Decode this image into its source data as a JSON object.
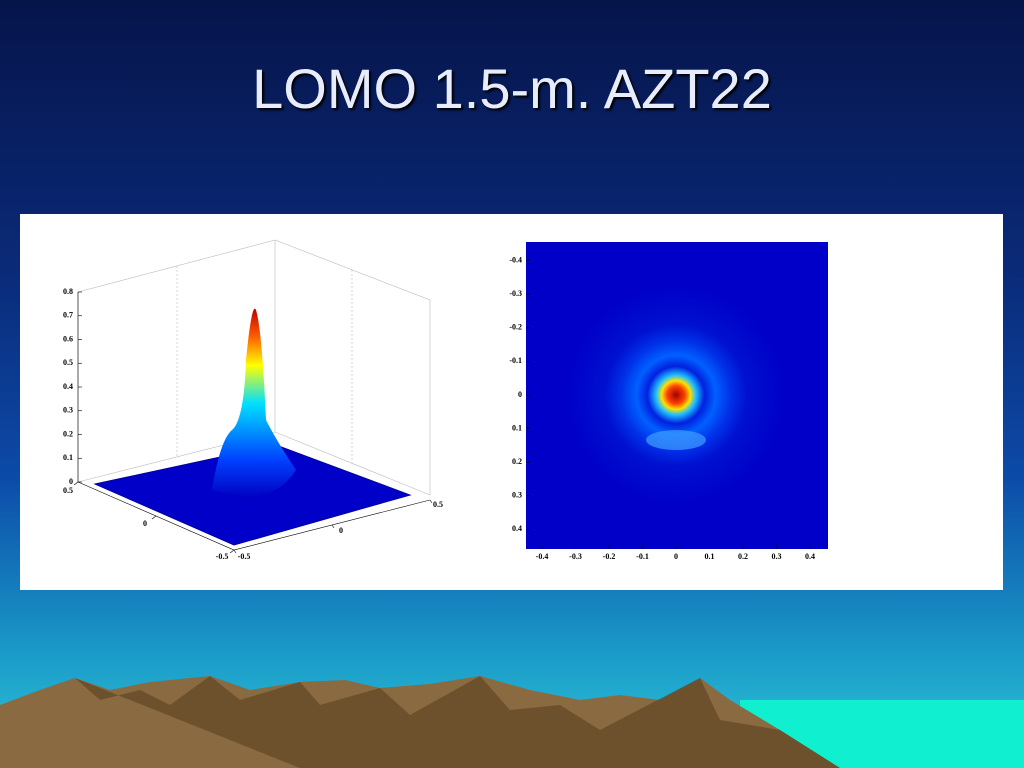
{
  "slide": {
    "title": "LOMO 1.5-m. AZT22"
  },
  "surface_plot": {
    "zticks": [
      0,
      0.1,
      0.2,
      0.3,
      0.4,
      0.5,
      0.6,
      0.7,
      0.8
    ],
    "xticks": [
      0.5,
      0,
      -0.5
    ],
    "yticks": [
      -0.5,
      0,
      0.5
    ]
  },
  "image_plot": {
    "xticks": [
      -0.4,
      -0.3,
      -0.2,
      -0.1,
      0,
      0.1,
      0.2,
      0.3,
      0.4
    ],
    "yticks": [
      -0.4,
      -0.3,
      -0.2,
      -0.1,
      0,
      0.1,
      0.2,
      0.3,
      0.4
    ]
  }
}
